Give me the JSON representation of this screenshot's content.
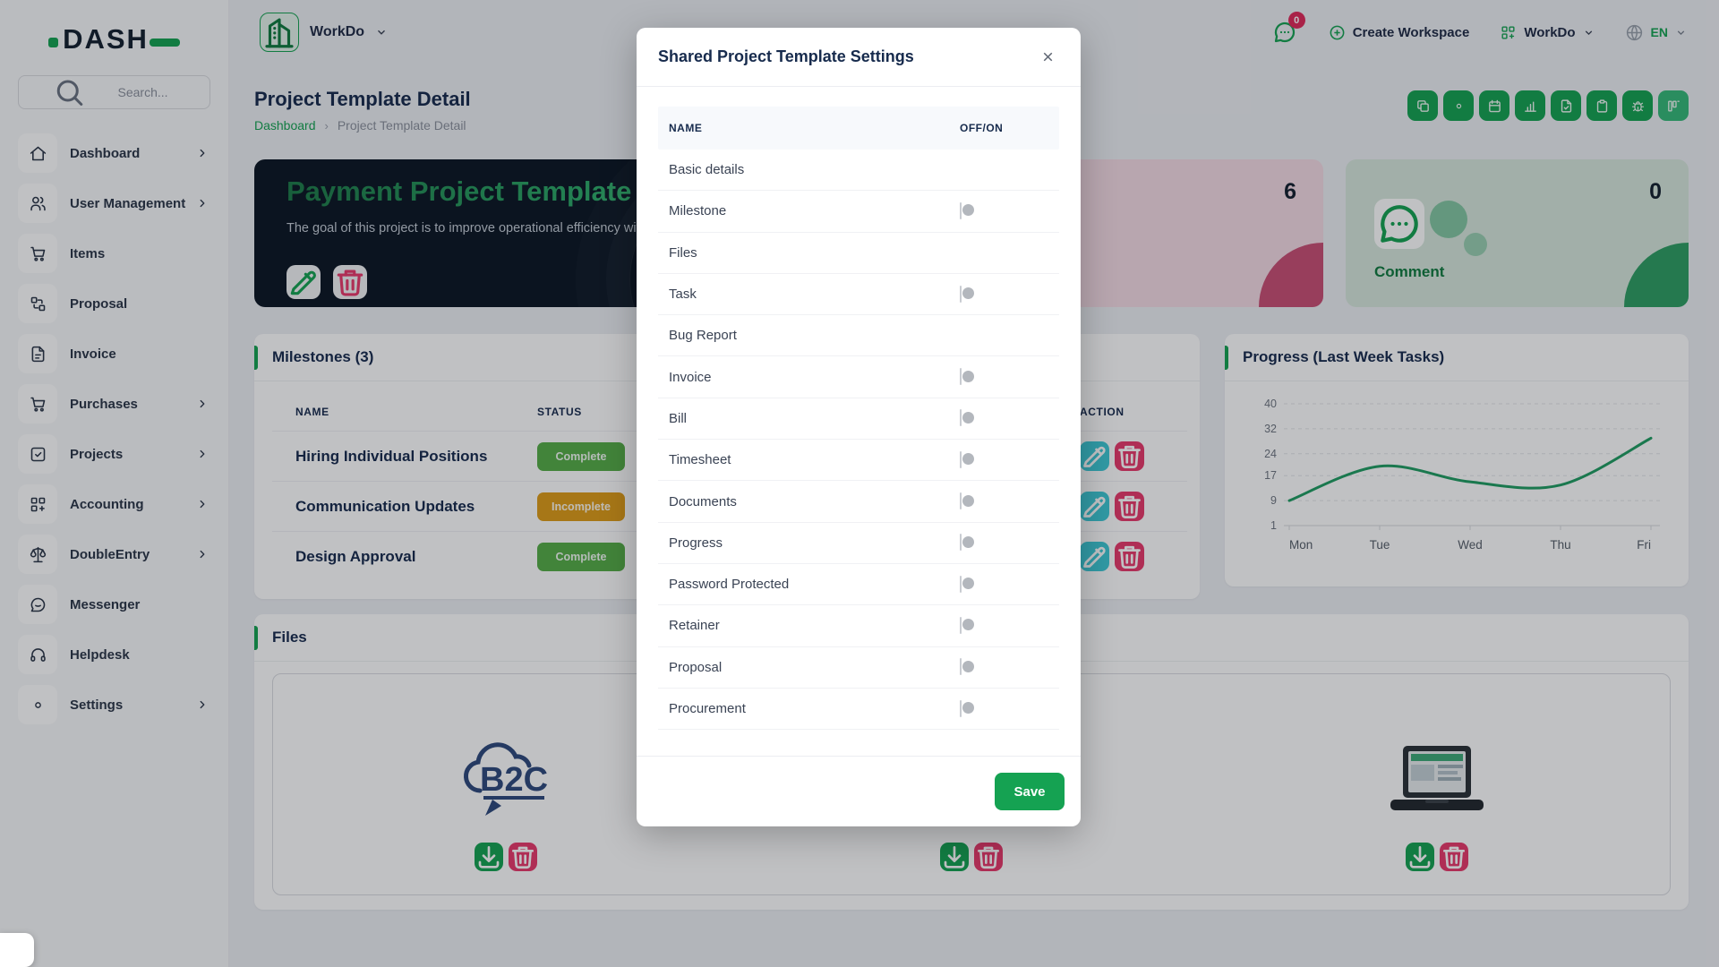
{
  "brand": {
    "logo_text": "DASH"
  },
  "sidebar": {
    "search": {
      "placeholder": "Search...",
      "icon": "search-icon"
    },
    "items": [
      {
        "label": "Dashboard",
        "icon": "home",
        "expandable": true
      },
      {
        "label": "User Management",
        "icon": "users",
        "expandable": true
      },
      {
        "label": "Items",
        "icon": "cart",
        "expandable": false
      },
      {
        "label": "Proposal",
        "icon": "proposal",
        "expandable": false
      },
      {
        "label": "Invoice",
        "icon": "invoice",
        "expandable": false
      },
      {
        "label": "Purchases",
        "icon": "cart",
        "expandable": true
      },
      {
        "label": "Projects",
        "icon": "check-square",
        "expandable": true
      },
      {
        "label": "Accounting",
        "icon": "grid-plus",
        "expandable": true
      },
      {
        "label": "DoubleEntry",
        "icon": "scale",
        "expandable": true
      },
      {
        "label": "Messenger",
        "icon": "message",
        "expandable": false
      },
      {
        "label": "Helpdesk",
        "icon": "headset",
        "expandable": false
      },
      {
        "label": "Settings",
        "icon": "gear",
        "expandable": true
      }
    ]
  },
  "header": {
    "workspace_chip_label": "WorkDo",
    "messages_badge": "0",
    "create_workspace_label": "Create Workspace",
    "workspace_dropdown_label": "WorkDo",
    "language": "EN"
  },
  "page": {
    "title": "Project Template Detail",
    "breadcrumb_home": "Dashboard",
    "breadcrumb_current": "Project Template Detail"
  },
  "toolbar": {
    "buttons": [
      {
        "icon": "copy",
        "variant": "solid"
      },
      {
        "icon": "gear",
        "variant": "solid"
      },
      {
        "icon": "calendar",
        "variant": "solid"
      },
      {
        "icon": "bar-chart",
        "variant": "solid"
      },
      {
        "icon": "file",
        "variant": "solid"
      },
      {
        "icon": "clipboard",
        "variant": "solid"
      },
      {
        "icon": "bug",
        "variant": "solid"
      },
      {
        "icon": "kanban",
        "variant": "light"
      }
    ]
  },
  "banner": {
    "title": "Payment Project Template",
    "description": "The goal of this project is to improve operational efficiency with automation."
  },
  "stats": [
    {
      "value": "6",
      "bg": "#f4dbe4",
      "accent": "#c94f75"
    },
    {
      "value": "0",
      "label": "Comment",
      "icon": "chat-icon",
      "bg": "#d7e7dc",
      "accent": "#2e9e63"
    }
  ],
  "milestones": {
    "title": "Milestones (3)",
    "columns": [
      "NAME",
      "STATUS",
      "ACTION"
    ],
    "rows": [
      {
        "name": "Hiring Individual Positions",
        "status": "Complete"
      },
      {
        "name": "Communication Updates",
        "status": "Incomplete"
      },
      {
        "name": "Design Approval",
        "status": "Complete"
      }
    ],
    "status_colors": {
      "Complete": "#55ad47",
      "Incomplete": "#dd9c17"
    }
  },
  "chart_data": {
    "type": "line",
    "title": "Progress (Last Week Tasks)",
    "categories": [
      "Mon",
      "Tue",
      "Wed",
      "Thu",
      "Fri"
    ],
    "values": [
      9,
      20,
      15,
      14,
      29
    ],
    "yticks": [
      40,
      32,
      24,
      17,
      9,
      1
    ],
    "ylim": [
      1,
      40
    ],
    "line_color": "#1f9d62",
    "grid": "dashed-horizontal",
    "legend": "none"
  },
  "files": {
    "title": "Files",
    "items": [
      {
        "image": "b2c-logo"
      },
      {
        "image": "covered"
      },
      {
        "image": "laptop-photo"
      }
    ]
  },
  "modal": {
    "title": "Shared Project Template Settings",
    "columns": [
      "NAME",
      "OFF/ON"
    ],
    "rows": [
      {
        "label": "Basic details",
        "on": true
      },
      {
        "label": "Milestone",
        "on": false
      },
      {
        "label": "Files",
        "on": true
      },
      {
        "label": "Task",
        "on": false
      },
      {
        "label": "Bug Report",
        "on": true
      },
      {
        "label": "Invoice",
        "on": false
      },
      {
        "label": "Bill",
        "on": false
      },
      {
        "label": "Timesheet",
        "on": false
      },
      {
        "label": "Documents",
        "on": false
      },
      {
        "label": "Progress",
        "on": false
      },
      {
        "label": "Password Protected",
        "on": false
      },
      {
        "label": "Retainer",
        "on": false
      },
      {
        "label": "Proposal",
        "on": false
      },
      {
        "label": "Procurement",
        "on": false
      }
    ],
    "save_label": "Save"
  },
  "colors": {
    "primary": "#15a252",
    "danger": "#e8396b",
    "info": "#3ec9d6",
    "banner_bg": "#0c1624",
    "toggle_on": "#17a457",
    "badge_complete": "#55ad47",
    "badge_incomplete": "#dd9c17"
  }
}
